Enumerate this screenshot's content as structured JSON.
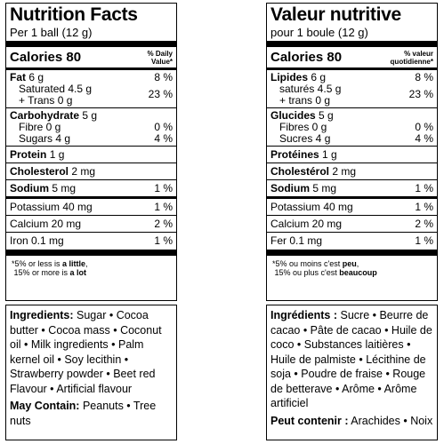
{
  "en": {
    "title": "Nutrition Facts",
    "serving": "Per 1 ball (12 g)",
    "calories": "Calories 80",
    "dv_line1": "% Daily",
    "dv_line2": "Value*",
    "fat_label": "Fat",
    "fat_amount": "6 g",
    "fat_pct": "8 %",
    "saturated": "Saturated 4.5 g",
    "trans": "+ Trans 0 g",
    "sat_trans_pct": "23 %",
    "carb_label": "Carbohydrate",
    "carb_amount": "5 g",
    "fibre": "Fibre 0 g",
    "fibre_pct": "0 %",
    "sugars": "Sugars 4 g",
    "sugars_pct": "4 %",
    "protein_label": "Protein",
    "protein_amount": "1 g",
    "chol_label": "Cholesterol",
    "chol_amount": "2 mg",
    "sodium_label": "Sodium",
    "sodium_amount": "5 mg",
    "sodium_pct": "1 %",
    "potassium": "Potassium 40 mg",
    "potassium_pct": "1 %",
    "calcium": "Calcium 20 mg",
    "calcium_pct": "2 %",
    "iron": "Iron 0.1 mg",
    "iron_pct": "1 %",
    "foot_a": "*5% or less is ",
    "foot_a_bold": "a little",
    "foot_a_end": ",",
    "foot_b": "15% or more is ",
    "foot_b_bold": "a lot",
    "ingredients_label": "Ingredients:",
    "ingredients_text": " Sugar • Cocoa butter • Cocoa mass • Coconut oil • Milk ingredients • Palm kernel oil • Soy lecithin • Strawberry powder • Beet red Flavour • Artificial flavour",
    "may_contain_label": "May Contain:",
    "may_contain_text": " Peanuts • Tree nuts"
  },
  "fr": {
    "title": "Valeur nutritive",
    "serving": "pour 1 boule (12 g)",
    "calories": "Calories 80",
    "dv_line1": "% valeur",
    "dv_line2": "quotidienne*",
    "fat_label": "Lipides",
    "fat_amount": "6 g",
    "fat_pct": "8 %",
    "saturated": "saturés 4.5 g",
    "trans": "+ trans 0 g",
    "sat_trans_pct": "23 %",
    "carb_label": "Glucides",
    "carb_amount": "5 g",
    "fibre": "Fibres 0 g",
    "fibre_pct": "0 %",
    "sugars": "Sucres 4 g",
    "sugars_pct": "4 %",
    "protein_label": "Protéines",
    "protein_amount": "1 g",
    "chol_label": "Cholestérol",
    "chol_amount": "2 mg",
    "sodium_label": "Sodium",
    "sodium_amount": "5 mg",
    "sodium_pct": "1 %",
    "potassium": "Potassium 40 mg",
    "potassium_pct": "1 %",
    "calcium": "Calcium 20 mg",
    "calcium_pct": "2 %",
    "iron": "Fer 0.1 mg",
    "iron_pct": "1 %",
    "foot_a": "*5% ou moins c'est ",
    "foot_a_bold": "peu",
    "foot_a_end": ",",
    "foot_b": "15% ou plus c'est ",
    "foot_b_bold": "beaucoup",
    "ingredients_label": "Ingrédients :",
    "ingredients_text": " Sucre • Beurre de cacao • Pâte de cacao • Huile de coco • Substances laitières • Huile de palmiste • Lécithine de soja • Poudre de fraise • Rouge de betterave • Arôme • Arôme artificiel",
    "may_contain_label": "Peut contenir :",
    "may_contain_text": " Arachides • Noix"
  }
}
